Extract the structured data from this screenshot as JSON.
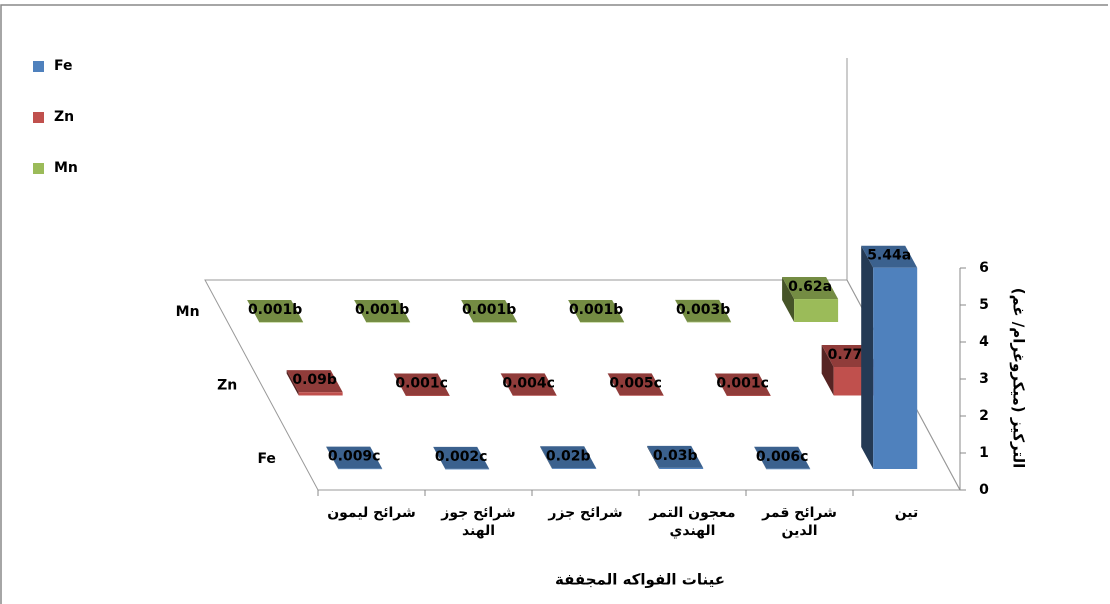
{
  "chart_data": {
    "type": "bar3d",
    "categories": [
      "شرائح ليمون",
      "شرائح جوز الهند",
      "شرائح جزر",
      "معجون التمر الهندي",
      "شرائح قمر الدين",
      "تين"
    ],
    "series": [
      {
        "name": "Fe",
        "color": "#4f81bd",
        "values": [
          0.009,
          0.002,
          0.02,
          0.03,
          0.006,
          5.44
        ],
        "value_labels": [
          "0.009c",
          "0.002c",
          "0.02b",
          "0.03b",
          "0.006c",
          "5.44a"
        ]
      },
      {
        "name": "Zn",
        "color": "#c0504d",
        "values": [
          0.09,
          0.001,
          0.004,
          0.005,
          0.001,
          0.77
        ],
        "value_labels": [
          "0.09b",
          "0.001c",
          "0.004c",
          "0.005c",
          "0.001c",
          "0.77a"
        ]
      },
      {
        "name": "Mn",
        "color": "#9bbb59",
        "values": [
          0.001,
          0.001,
          0.001,
          0.001,
          0.003,
          0.62
        ],
        "value_labels": [
          "0.001b",
          "0.001b",
          "0.001b",
          "0.001b",
          "0.003b",
          "0.62a"
        ]
      }
    ],
    "ylim": [
      0,
      6
    ],
    "yticks": [
      0,
      1,
      2,
      3,
      4,
      5,
      6
    ],
    "y_label": "التركيز (ميكروغرام/ غم)",
    "x_label": "عينات الفواكه المجففة",
    "legend": "top-left"
  }
}
